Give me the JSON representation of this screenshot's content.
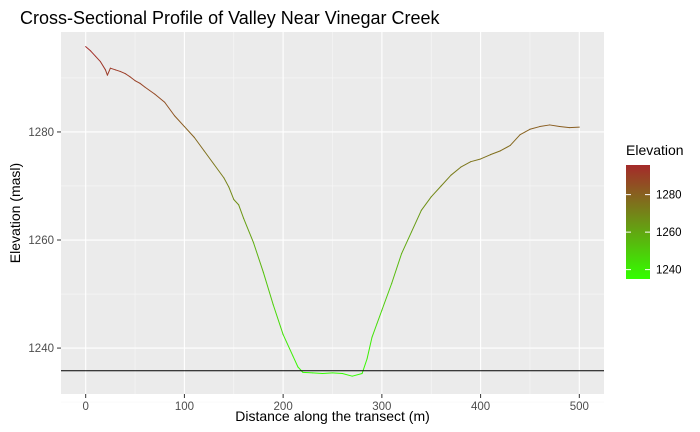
{
  "chart_data": {
    "type": "line",
    "title": "Cross-Sectional Profile of Valley Near Vinegar Creek",
    "xlabel": "Distance along the transect (m)",
    "ylabel": "Elevation (masl)",
    "xlim": [
      -25,
      525
    ],
    "ylim": [
      1231.5,
      1298.5
    ],
    "x_ticks": [
      0,
      100,
      200,
      300,
      400,
      500
    ],
    "y_ticks": [
      1240,
      1260,
      1280
    ],
    "x_tick_labels": [
      "0",
      "100",
      "200",
      "300",
      "400",
      "500"
    ],
    "y_tick_labels": [
      "1240",
      "1260",
      "1280"
    ],
    "grid": true,
    "hline": 1235.8,
    "color_scale": {
      "low": "#33ff00",
      "high": "#a52a2a",
      "min": 1235,
      "max": 1295.8
    },
    "legend": {
      "title": "Elevation",
      "position": "right",
      "labels": [
        "1240",
        "1260",
        "1280"
      ],
      "values": [
        1240,
        1260,
        1280
      ]
    },
    "x": [
      0,
      5,
      10,
      15,
      20,
      22,
      25,
      30,
      35,
      40,
      45,
      50,
      55,
      60,
      70,
      80,
      90,
      100,
      110,
      120,
      130,
      140,
      145,
      150,
      155,
      160,
      170,
      180,
      190,
      200,
      210,
      215,
      220,
      230,
      240,
      250,
      260,
      270,
      280,
      285,
      290,
      295,
      300,
      310,
      320,
      330,
      340,
      350,
      360,
      370,
      380,
      390,
      400,
      410,
      420,
      430,
      440,
      450,
      460,
      470,
      480,
      490,
      500
    ],
    "y": [
      1295.8,
      1295,
      1294,
      1293,
      1291.5,
      1290.5,
      1291.8,
      1291.5,
      1291.2,
      1290.8,
      1290.2,
      1289.5,
      1289,
      1288.3,
      1287,
      1285.5,
      1283,
      1281,
      1279,
      1276.5,
      1274,
      1271.5,
      1269.8,
      1267.5,
      1266.5,
      1264,
      1259.5,
      1254,
      1248,
      1242.5,
      1238.5,
      1236.5,
      1235.5,
      1235.4,
      1235.3,
      1235.4,
      1235.3,
      1234.8,
      1235.3,
      1238,
      1242,
      1244.5,
      1247,
      1252,
      1257.5,
      1261.5,
      1265.5,
      1268,
      1270,
      1272,
      1273.5,
      1274.5,
      1275,
      1275.8,
      1276.5,
      1277.5,
      1279.5,
      1280.5,
      1281,
      1281.3,
      1281,
      1280.8,
      1280.9
    ]
  }
}
